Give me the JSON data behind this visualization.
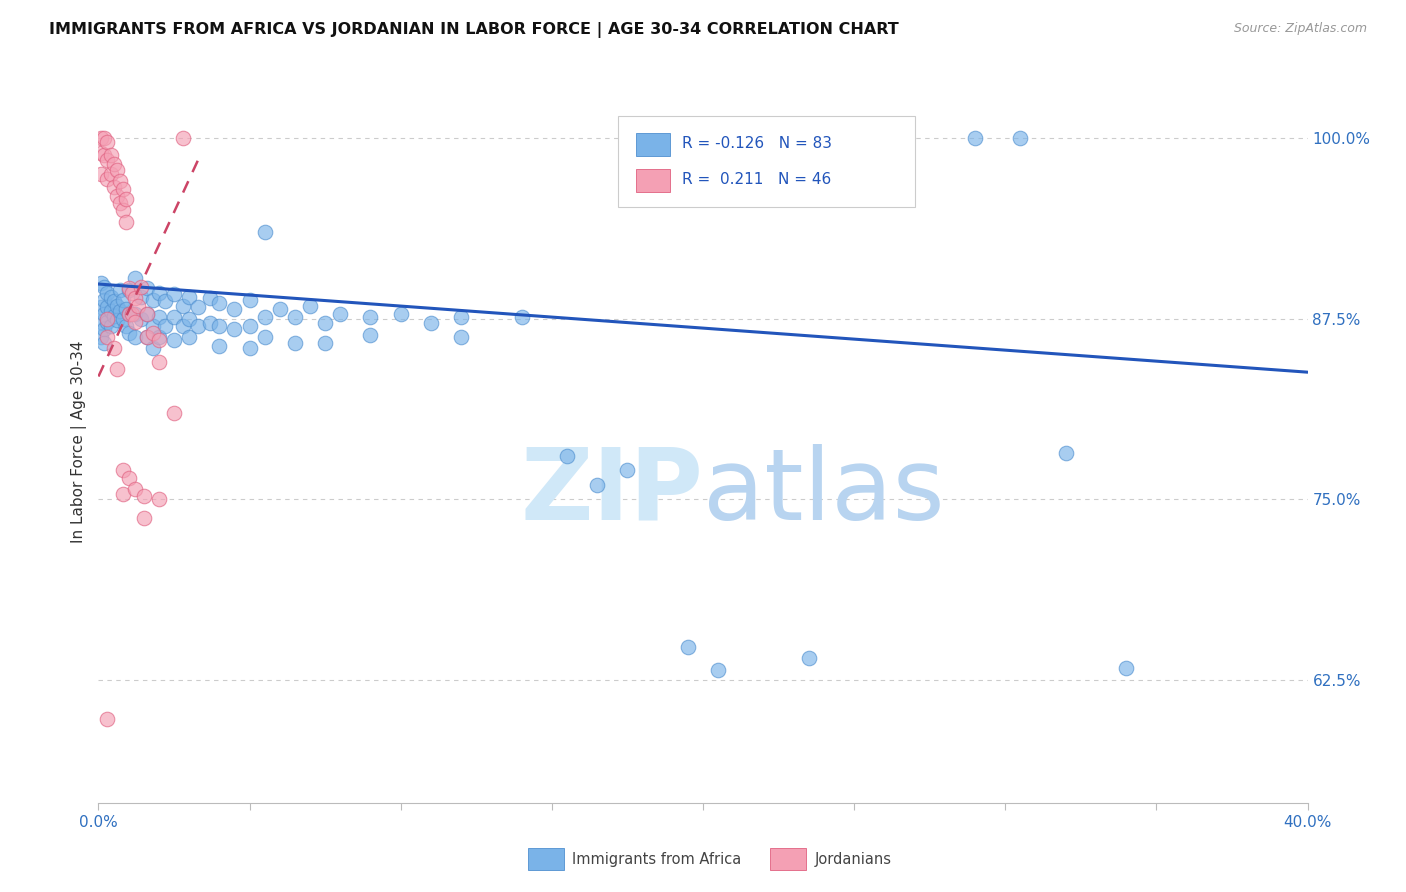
{
  "title": "IMMIGRANTS FROM AFRICA VS JORDANIAN IN LABOR FORCE | AGE 30-34 CORRELATION CHART",
  "source_text": "Source: ZipAtlas.com",
  "ylabel": "In Labor Force | Age 30-34",
  "xlim": [
    0.0,
    0.4
  ],
  "ylim": [
    0.54,
    1.04
  ],
  "yticks": [
    0.625,
    0.75,
    0.875,
    1.0
  ],
  "ytick_labels": [
    "62.5%",
    "75.0%",
    "87.5%",
    "100.0%"
  ],
  "xticks": [
    0.0,
    0.05,
    0.1,
    0.15,
    0.2,
    0.25,
    0.3,
    0.35,
    0.4
  ],
  "africa_color": "#7ab3e8",
  "jordan_color": "#f4a0b4",
  "africa_edge_color": "#5090d0",
  "jordan_edge_color": "#e06080",
  "trendline_africa_color": "#2255bb",
  "trendline_jordan_color": "#cc4466",
  "grid_color": "#cccccc",
  "watermark_color": "#d0e8f8",
  "africa_trendline": [
    [
      0.0,
      0.899
    ],
    [
      0.4,
      0.838
    ]
  ],
  "jordan_trendline": [
    [
      0.0,
      0.835
    ],
    [
      0.033,
      0.985
    ]
  ],
  "africa_points": [
    [
      0.001,
      0.9
    ],
    [
      0.001,
      0.883
    ],
    [
      0.001,
      0.873
    ],
    [
      0.001,
      0.862
    ],
    [
      0.002,
      0.897
    ],
    [
      0.002,
      0.888
    ],
    [
      0.002,
      0.878
    ],
    [
      0.002,
      0.868
    ],
    [
      0.002,
      0.858
    ],
    [
      0.003,
      0.893
    ],
    [
      0.003,
      0.883
    ],
    [
      0.003,
      0.873
    ],
    [
      0.004,
      0.89
    ],
    [
      0.004,
      0.88
    ],
    [
      0.004,
      0.87
    ],
    [
      0.005,
      0.887
    ],
    [
      0.005,
      0.877
    ],
    [
      0.006,
      0.884
    ],
    [
      0.006,
      0.874
    ],
    [
      0.007,
      0.895
    ],
    [
      0.007,
      0.88
    ],
    [
      0.008,
      0.888
    ],
    [
      0.008,
      0.875
    ],
    [
      0.009,
      0.882
    ],
    [
      0.009,
      0.87
    ],
    [
      0.01,
      0.895
    ],
    [
      0.01,
      0.878
    ],
    [
      0.01,
      0.865
    ],
    [
      0.012,
      0.903
    ],
    [
      0.012,
      0.878
    ],
    [
      0.012,
      0.862
    ],
    [
      0.014,
      0.89
    ],
    [
      0.014,
      0.875
    ],
    [
      0.016,
      0.896
    ],
    [
      0.016,
      0.878
    ],
    [
      0.016,
      0.862
    ],
    [
      0.018,
      0.888
    ],
    [
      0.018,
      0.87
    ],
    [
      0.018,
      0.855
    ],
    [
      0.02,
      0.893
    ],
    [
      0.02,
      0.876
    ],
    [
      0.02,
      0.862
    ],
    [
      0.022,
      0.887
    ],
    [
      0.022,
      0.87
    ],
    [
      0.025,
      0.892
    ],
    [
      0.025,
      0.876
    ],
    [
      0.025,
      0.86
    ],
    [
      0.028,
      0.884
    ],
    [
      0.028,
      0.87
    ],
    [
      0.03,
      0.89
    ],
    [
      0.03,
      0.875
    ],
    [
      0.03,
      0.862
    ],
    [
      0.033,
      0.883
    ],
    [
      0.033,
      0.87
    ],
    [
      0.037,
      0.889
    ],
    [
      0.037,
      0.872
    ],
    [
      0.04,
      0.886
    ],
    [
      0.04,
      0.87
    ],
    [
      0.04,
      0.856
    ],
    [
      0.045,
      0.882
    ],
    [
      0.045,
      0.868
    ],
    [
      0.05,
      0.888
    ],
    [
      0.05,
      0.87
    ],
    [
      0.05,
      0.855
    ],
    [
      0.055,
      0.935
    ],
    [
      0.055,
      0.876
    ],
    [
      0.055,
      0.862
    ],
    [
      0.06,
      0.882
    ],
    [
      0.065,
      0.876
    ],
    [
      0.065,
      0.858
    ],
    [
      0.07,
      0.884
    ],
    [
      0.075,
      0.872
    ],
    [
      0.075,
      0.858
    ],
    [
      0.08,
      0.878
    ],
    [
      0.09,
      0.876
    ],
    [
      0.09,
      0.864
    ],
    [
      0.1,
      0.878
    ],
    [
      0.11,
      0.872
    ],
    [
      0.12,
      0.876
    ],
    [
      0.12,
      0.862
    ],
    [
      0.14,
      0.876
    ],
    [
      0.155,
      0.78
    ],
    [
      0.165,
      0.76
    ],
    [
      0.175,
      0.77
    ],
    [
      0.195,
      0.648
    ],
    [
      0.205,
      0.632
    ],
    [
      0.235,
      0.64
    ],
    [
      0.29,
      1.0
    ],
    [
      0.305,
      1.0
    ],
    [
      0.32,
      0.782
    ],
    [
      0.34,
      0.633
    ]
  ],
  "jordan_points": [
    [
      0.001,
      1.0
    ],
    [
      0.001,
      0.99
    ],
    [
      0.001,
      0.975
    ],
    [
      0.002,
      1.0
    ],
    [
      0.002,
      0.988
    ],
    [
      0.003,
      0.997
    ],
    [
      0.003,
      0.985
    ],
    [
      0.003,
      0.972
    ],
    [
      0.004,
      0.988
    ],
    [
      0.004,
      0.975
    ],
    [
      0.005,
      0.982
    ],
    [
      0.005,
      0.966
    ],
    [
      0.006,
      0.978
    ],
    [
      0.006,
      0.96
    ],
    [
      0.007,
      0.97
    ],
    [
      0.007,
      0.955
    ],
    [
      0.008,
      0.965
    ],
    [
      0.008,
      0.95
    ],
    [
      0.009,
      0.958
    ],
    [
      0.009,
      0.942
    ],
    [
      0.01,
      0.896
    ],
    [
      0.01,
      0.878
    ],
    [
      0.011,
      0.893
    ],
    [
      0.011,
      0.878
    ],
    [
      0.012,
      0.889
    ],
    [
      0.012,
      0.873
    ],
    [
      0.013,
      0.884
    ],
    [
      0.014,
      0.897
    ],
    [
      0.016,
      0.878
    ],
    [
      0.016,
      0.862
    ],
    [
      0.018,
      0.865
    ],
    [
      0.02,
      0.86
    ],
    [
      0.02,
      0.845
    ],
    [
      0.003,
      0.875
    ],
    [
      0.003,
      0.862
    ],
    [
      0.005,
      0.855
    ],
    [
      0.006,
      0.84
    ],
    [
      0.008,
      0.77
    ],
    [
      0.008,
      0.754
    ],
    [
      0.01,
      0.765
    ],
    [
      0.012,
      0.757
    ],
    [
      0.015,
      0.752
    ],
    [
      0.015,
      0.737
    ],
    [
      0.02,
      0.75
    ],
    [
      0.025,
      0.81
    ],
    [
      0.028,
      1.0
    ],
    [
      0.003,
      0.598
    ]
  ]
}
